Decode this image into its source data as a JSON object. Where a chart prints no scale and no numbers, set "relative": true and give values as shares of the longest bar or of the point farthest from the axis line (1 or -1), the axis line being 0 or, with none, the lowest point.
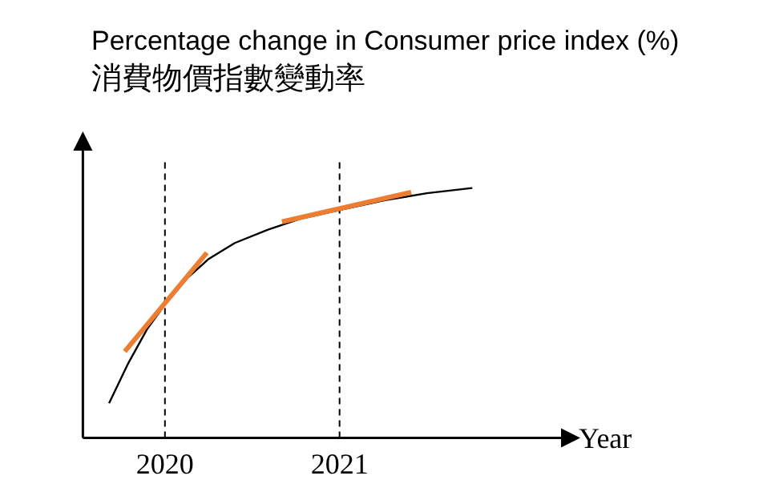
{
  "chart_data": {
    "type": "line",
    "title": "Percentage change in Consumer price index (%)",
    "subtitle": "消費物價指數變動率",
    "xlabel": "Year",
    "relative": true,
    "xlim": [
      2019.53,
      2022.36
    ],
    "xticks": [
      2020,
      2021
    ],
    "ref_lines": [
      {
        "axis": "x",
        "value": 2020,
        "line_style": "dashed",
        "color": "#000000"
      },
      {
        "axis": "x",
        "value": 2021,
        "line_style": "dashed",
        "color": "#000000"
      }
    ],
    "series": [
      {
        "color": "#000000",
        "x": [
          2019.68,
          2019.79,
          2019.9,
          2020.0,
          2020.13,
          2020.25,
          2020.4,
          2020.59,
          2020.77,
          2021.0,
          2021.26,
          2021.5,
          2021.76
        ],
        "values": [
          0.139,
          0.299,
          0.438,
          0.534,
          0.641,
          0.716,
          0.78,
          0.833,
          0.876,
          0.912,
          0.951,
          0.979,
          1.0
        ]
      },
      {
        "color": "#ed7d31",
        "x": [
          2019.77,
          2020.24
        ],
        "values": [
          0.346,
          0.741
        ]
      },
      {
        "color": "#ed7d31",
        "x": [
          2020.67,
          2021.41
        ],
        "values": [
          0.865,
          0.983
        ]
      }
    ]
  }
}
